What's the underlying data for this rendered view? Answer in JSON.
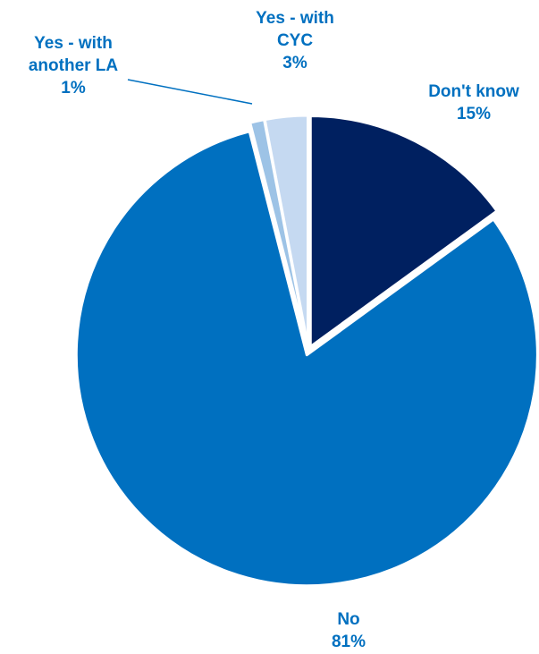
{
  "chart_data": {
    "type": "pie",
    "slices": [
      {
        "label": "Don't know",
        "value": 15,
        "value_label": "15%",
        "color": "#002060",
        "label_lines": [
          "Don't know"
        ]
      },
      {
        "label": "No",
        "value": 81,
        "value_label": "81%",
        "color": "#0070C0",
        "label_lines": [
          "No"
        ]
      },
      {
        "label": "Yes - with another LA",
        "value": 1,
        "value_label": "1%",
        "color": "#9DC3E6",
        "label_lines": [
          "Yes - with",
          "another LA"
        ]
      },
      {
        "label": "Yes - with CYC",
        "value": 3,
        "value_label": "3%",
        "color": "#C5D9F1",
        "label_lines": [
          "Yes - with",
          "CYC"
        ]
      }
    ],
    "label_color": "#0070C0",
    "start": "12 o'clock, clockwise",
    "exploded": true
  }
}
